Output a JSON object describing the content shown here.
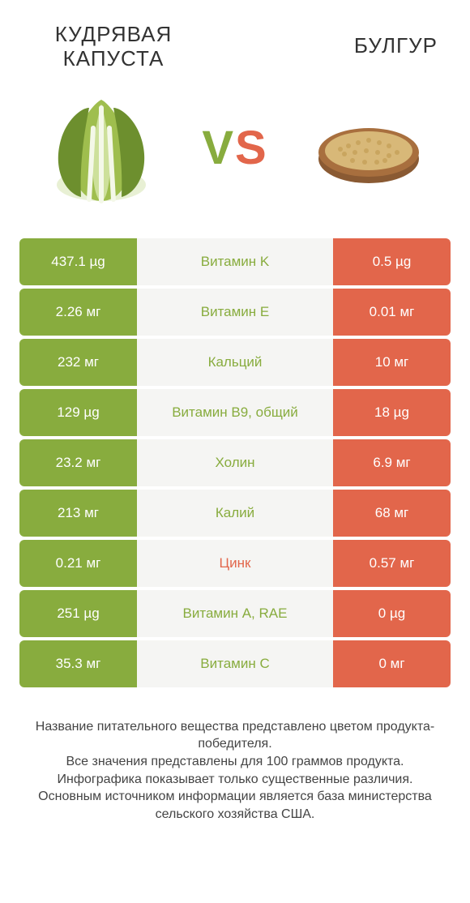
{
  "colors": {
    "left": "#88ac3e",
    "right": "#e2664b",
    "mid_bg": "#f5f5f3",
    "text": "#333333"
  },
  "fonts": {
    "title_size": 26,
    "vs_size": 58,
    "cell_size": 17,
    "footer_size": 16
  },
  "product_left": {
    "title": "КУДРЯВАЯ\nКАПУСТА"
  },
  "product_right": {
    "title": "БУЛГУР"
  },
  "vs_label": "VS",
  "rows": [
    {
      "left": "437.1 µg",
      "label": "Витамин K",
      "right": "0.5 µg",
      "winner": "left"
    },
    {
      "left": "2.26 мг",
      "label": "Витамин E",
      "right": "0.01 мг",
      "winner": "left"
    },
    {
      "left": "232 мг",
      "label": "Кальций",
      "right": "10 мг",
      "winner": "left"
    },
    {
      "left": "129 µg",
      "label": "Витамин B9, общий",
      "right": "18 µg",
      "winner": "left"
    },
    {
      "left": "23.2 мг",
      "label": "Холин",
      "right": "6.9 мг",
      "winner": "left"
    },
    {
      "left": "213 мг",
      "label": "Калий",
      "right": "68 мг",
      "winner": "left"
    },
    {
      "left": "0.21 мг",
      "label": "Цинк",
      "right": "0.57 мг",
      "winner": "right"
    },
    {
      "left": "251 µg",
      "label": "Витамин A, RAE",
      "right": "0 µg",
      "winner": "left"
    },
    {
      "left": "35.3 мг",
      "label": "Витамин C",
      "right": "0 мг",
      "winner": "left"
    }
  ],
  "footer_lines": [
    "Название питательного вещества представлено цветом продукта-победителя.",
    "Все значения представлены для 100 граммов продукта.",
    "Инфографика показывает только существенные различия.",
    "Основным источником информации является база министерства сельского хозяйства США."
  ]
}
